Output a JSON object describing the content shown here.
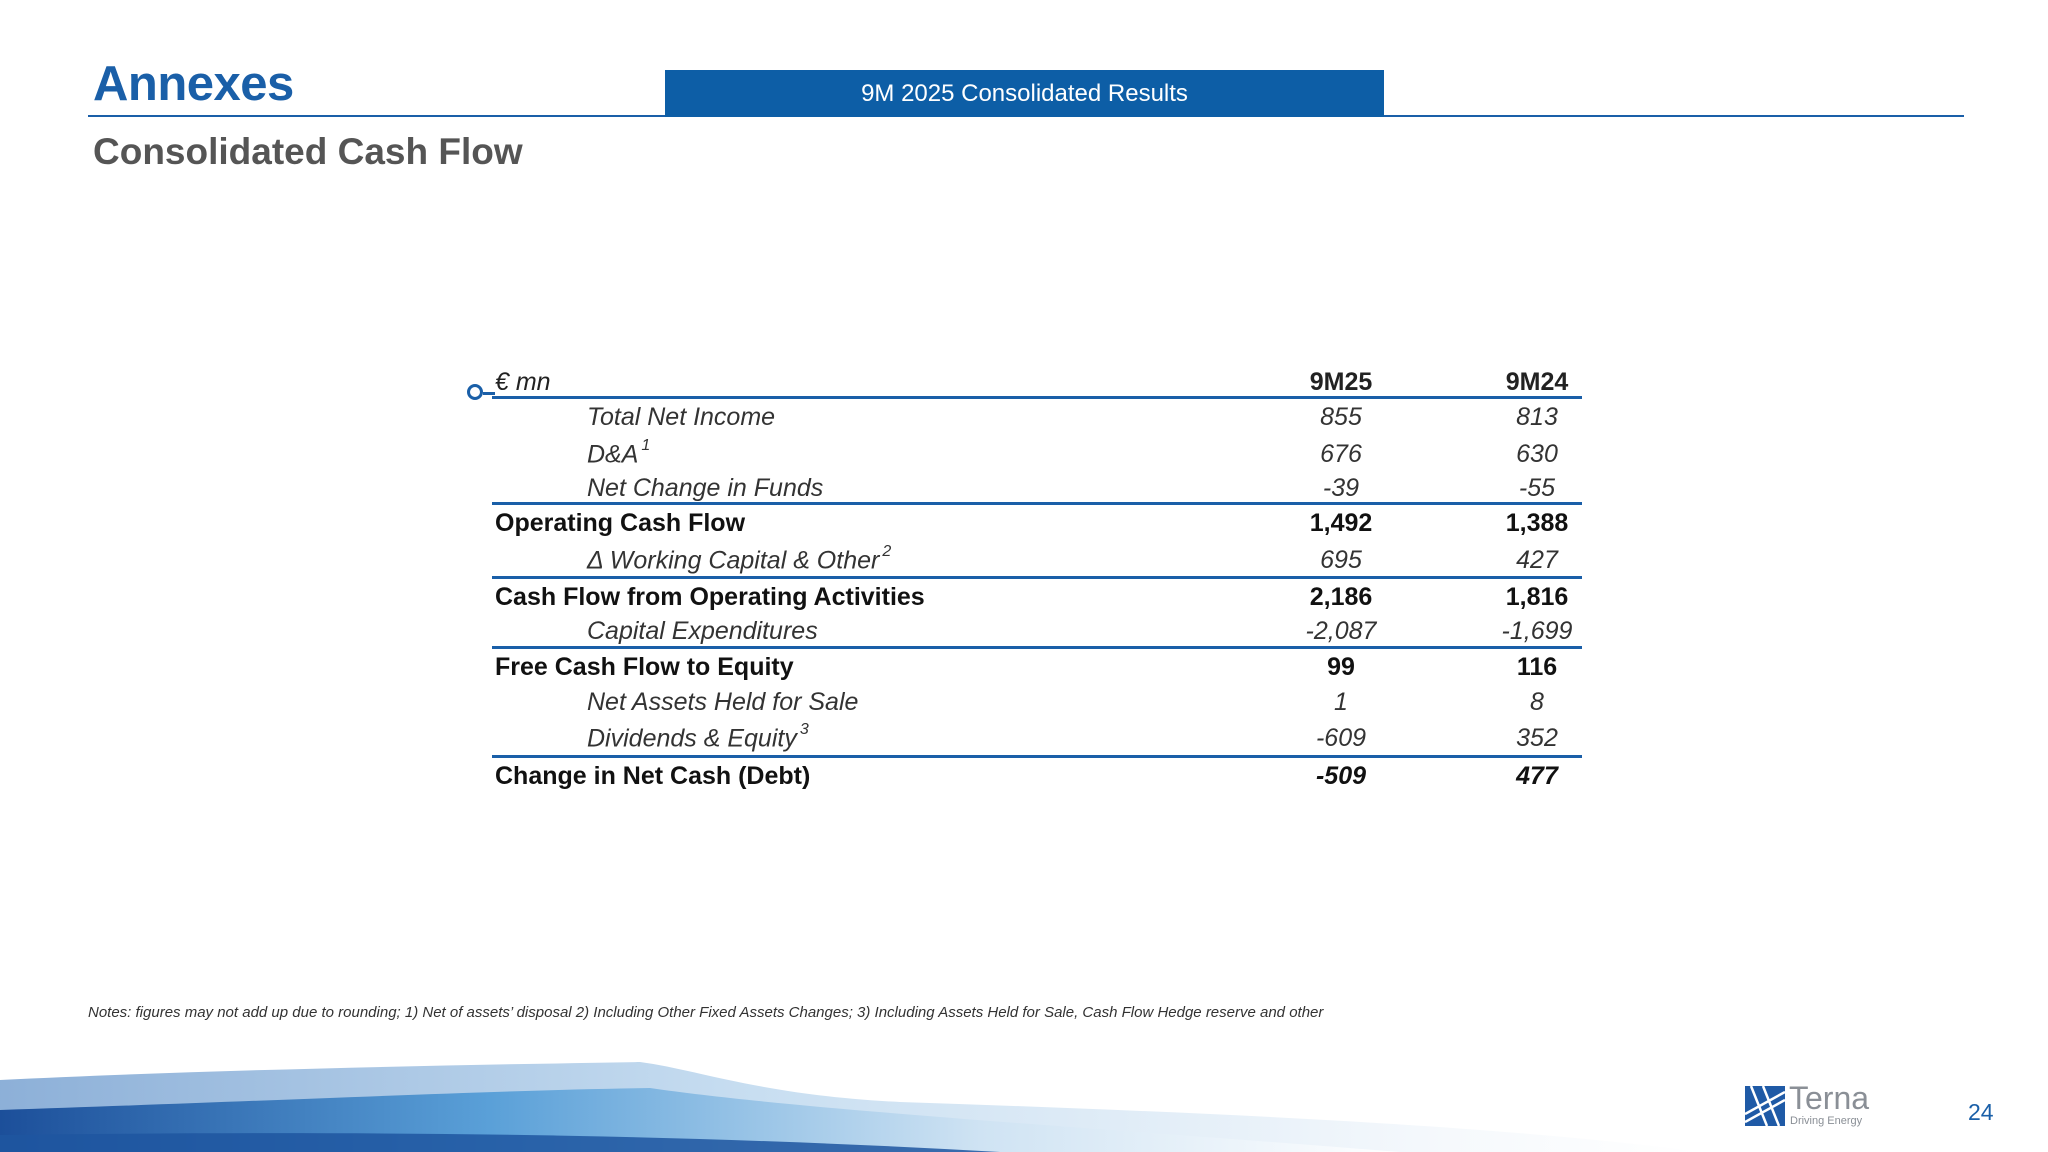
{
  "header": {
    "section_title": "Annexes",
    "banner_text": "9M 2025 Consolidated Results",
    "page_subtitle": "Consolidated Cash Flow"
  },
  "table": {
    "unit_label": "€ mn",
    "col1": "9M25",
    "col2": "9M24",
    "rows": [
      {
        "label": "Total Net Income",
        "sup": "",
        "v1": "855",
        "v2": "813"
      },
      {
        "label": "D&A",
        "sup": "1",
        "v1": "676",
        "v2": "630"
      },
      {
        "label": "Net Change in Funds",
        "sup": "",
        "v1": "-39",
        "v2": "-55"
      },
      {
        "label": "Operating Cash Flow",
        "sup": "",
        "v1": "1,492",
        "v2": "1,388"
      },
      {
        "label": "Δ Working Capital & Other",
        "sup": "2",
        "v1": "695",
        "v2": "427"
      },
      {
        "label": "Cash Flow from Operating Activities",
        "sup": "",
        "v1": "2,186",
        "v2": "1,816"
      },
      {
        "label": "Capital Expenditures",
        "sup": "",
        "v1": "-2,087",
        "v2": "-1,699"
      },
      {
        "label": "Free Cash Flow to Equity",
        "sup": "",
        "v1": "99",
        "v2": "116"
      },
      {
        "label": "Net Assets Held for Sale",
        "sup": "",
        "v1": "1",
        "v2": "8"
      },
      {
        "label": "Dividends & Equity",
        "sup": "3",
        "v1": "-609",
        "v2": "352"
      },
      {
        "label": "Change in Net Cash (Debt)",
        "sup": "",
        "v1": "-509",
        "v2": "477"
      }
    ]
  },
  "notes": "Notes: figures may not add up due to rounding; 1) Net of assets’ disposal 2) Including Other Fixed Assets Changes; 3) Including Assets Held for Sale, Cash Flow Hedge reserve and other",
  "footer": {
    "logo_name": "Terna",
    "logo_tagline": "Driving Energy",
    "page_number": "24"
  },
  "colors": {
    "brand_blue": "#1a5fa8",
    "banner_blue": "#0d5ea6",
    "subtitle_gray": "#555555"
  }
}
